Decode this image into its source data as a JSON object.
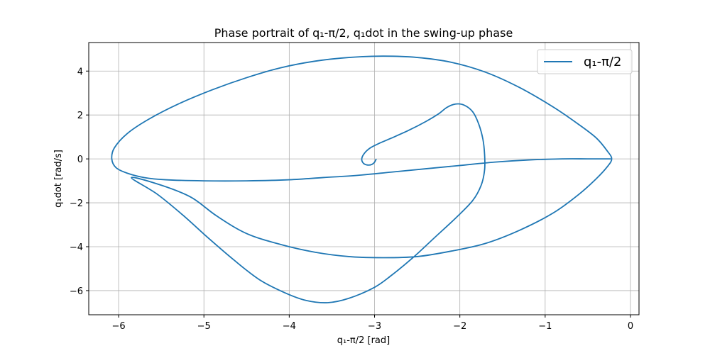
{
  "chart_data": {
    "type": "line",
    "title": "Phase portrait of q₁-π/2, q₁dot in the swing-up phase",
    "xlabel": "q₁-π/2 [rad]",
    "ylabel": "q₁dot [rad/s]",
    "xlim": [
      -6.35,
      0.1
    ],
    "ylim": [
      -7.1,
      5.3
    ],
    "xticks": [
      -6,
      -5,
      -4,
      -3,
      -2,
      -1,
      0
    ],
    "yticks": [
      -6,
      -4,
      -2,
      0,
      2,
      4
    ],
    "xtick_labels": [
      "−6",
      "−5",
      "−4",
      "−3",
      "−2",
      "−1",
      "0"
    ],
    "ytick_labels": [
      "−6",
      "−4",
      "−2",
      "0",
      "2",
      "4"
    ],
    "grid": true,
    "legend_position": "top-right",
    "series": [
      {
        "name": "q₁-π/2",
        "color": "#1f77b4",
        "x": [
          -2.98,
          -3.0,
          -3.03,
          -3.08,
          -3.13,
          -3.15,
          -3.12,
          -3.05,
          -2.95,
          -2.8,
          -2.6,
          -2.4,
          -2.25,
          -2.15,
          -2.05,
          -1.95,
          -1.85,
          -1.78,
          -1.73,
          -1.71,
          -1.71,
          -1.75,
          -1.85,
          -2.05,
          -2.3,
          -2.55,
          -2.8,
          -3.0,
          -3.3,
          -3.55,
          -3.8,
          -4.05,
          -4.35,
          -4.65,
          -4.95,
          -5.25,
          -5.55,
          -5.85,
          -5.5,
          -5.15,
          -4.85,
          -4.5,
          -4.1,
          -3.7,
          -3.3,
          -2.9,
          -2.5,
          -2.1,
          -1.7,
          -1.3,
          -0.9,
          -0.6,
          -0.4,
          -0.27,
          -0.22,
          -0.27,
          -0.4,
          -0.6,
          -0.9,
          -1.3,
          -1.7,
          -2.1,
          -2.5,
          -2.9,
          -3.3,
          -3.7,
          -4.1,
          -4.5,
          -4.9,
          -5.3,
          -5.65,
          -5.9,
          -6.05,
          -6.08,
          -6.03,
          -5.9,
          -5.7,
          -5.45,
          -5.0,
          -4.5,
          -4.0,
          -3.6,
          -3.2,
          -2.8,
          -2.4,
          -2.0,
          -1.6,
          -1.2,
          -0.8,
          -0.5,
          -0.3,
          -0.23
        ],
        "y": [
          0.0,
          -0.15,
          -0.25,
          -0.28,
          -0.2,
          0.0,
          0.25,
          0.5,
          0.7,
          0.95,
          1.3,
          1.7,
          2.05,
          2.35,
          2.5,
          2.45,
          2.15,
          1.6,
          0.9,
          0.2,
          -0.5,
          -1.2,
          -1.9,
          -2.7,
          -3.6,
          -4.5,
          -5.3,
          -5.85,
          -6.35,
          -6.55,
          -6.45,
          -6.1,
          -5.5,
          -4.6,
          -3.6,
          -2.55,
          -1.6,
          -0.85,
          -1.2,
          -1.75,
          -2.6,
          -3.4,
          -3.9,
          -4.25,
          -4.45,
          -4.5,
          -4.45,
          -4.2,
          -3.85,
          -3.25,
          -2.45,
          -1.6,
          -0.9,
          -0.35,
          0.0,
          0.35,
          0.95,
          1.55,
          2.35,
          3.25,
          3.95,
          4.4,
          4.62,
          4.68,
          4.62,
          4.45,
          4.15,
          3.7,
          3.15,
          2.5,
          1.8,
          1.15,
          0.5,
          0.0,
          -0.4,
          -0.65,
          -0.85,
          -0.95,
          -1.0,
          -1.0,
          -0.95,
          -0.85,
          -0.75,
          -0.6,
          -0.45,
          -0.3,
          -0.15,
          -0.05,
          0.0,
          0.0,
          0.0,
          0.0
        ]
      }
    ]
  }
}
